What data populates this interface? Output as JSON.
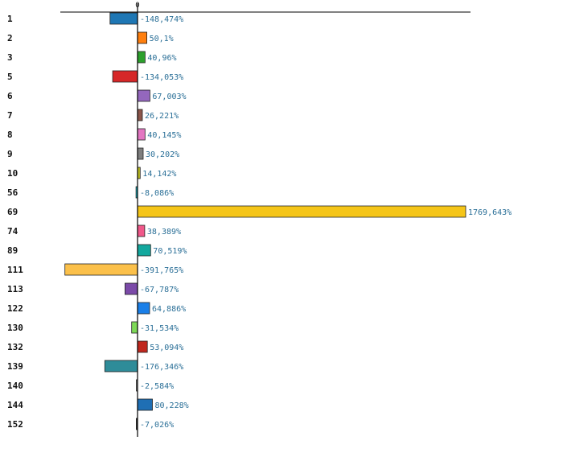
{
  "chart_data": {
    "type": "bar",
    "orientation": "horizontal",
    "zero_tick_label": "0",
    "grid": false,
    "categories": [
      "1",
      "2",
      "3",
      "5",
      "6",
      "7",
      "8",
      "9",
      "10",
      "56",
      "69",
      "74",
      "89",
      "111",
      "113",
      "122",
      "130",
      "132",
      "139",
      "140",
      "144",
      "152"
    ],
    "values": [
      -148.474,
      50.1,
      40.96,
      -134.053,
      67.003,
      26.221,
      40.145,
      30.202,
      14.142,
      -8.086,
      1769.643,
      38.389,
      70.519,
      -391.765,
      -67.787,
      64.886,
      -31.534,
      53.094,
      -176.346,
      -2.584,
      80.228,
      -7.026
    ],
    "value_labels": [
      "-148,474%",
      "50,1%",
      "40,96%",
      "-134,053%",
      "67,003%",
      "26,221%",
      "40,145%",
      "30,202%",
      "14,142%",
      "-8,086%",
      "1769,643%",
      "38,389%",
      "70,519%",
      "-391,765%",
      "-67,787%",
      "64,886%",
      "-31,534%",
      "53,094%",
      "-176,346%",
      "-2,584%",
      "80,228%",
      "-7,026%"
    ],
    "colors": [
      "#1f77b4",
      "#ff7f0e",
      "#2ca02c",
      "#d62728",
      "#9467bd",
      "#8c564b",
      "#e377c2",
      "#7f7f7f",
      "#bcbd22",
      "#17becf",
      "#f5c518",
      "#f0588a",
      "#13a89e",
      "#fbc04a",
      "#7b4aa8",
      "#1a7fe8",
      "#7ed957",
      "#c0281e",
      "#2e8c99",
      "#9e9e9e",
      "#1f6fb4",
      "#444444"
    ],
    "xlim": [
      -420,
      1800
    ]
  }
}
